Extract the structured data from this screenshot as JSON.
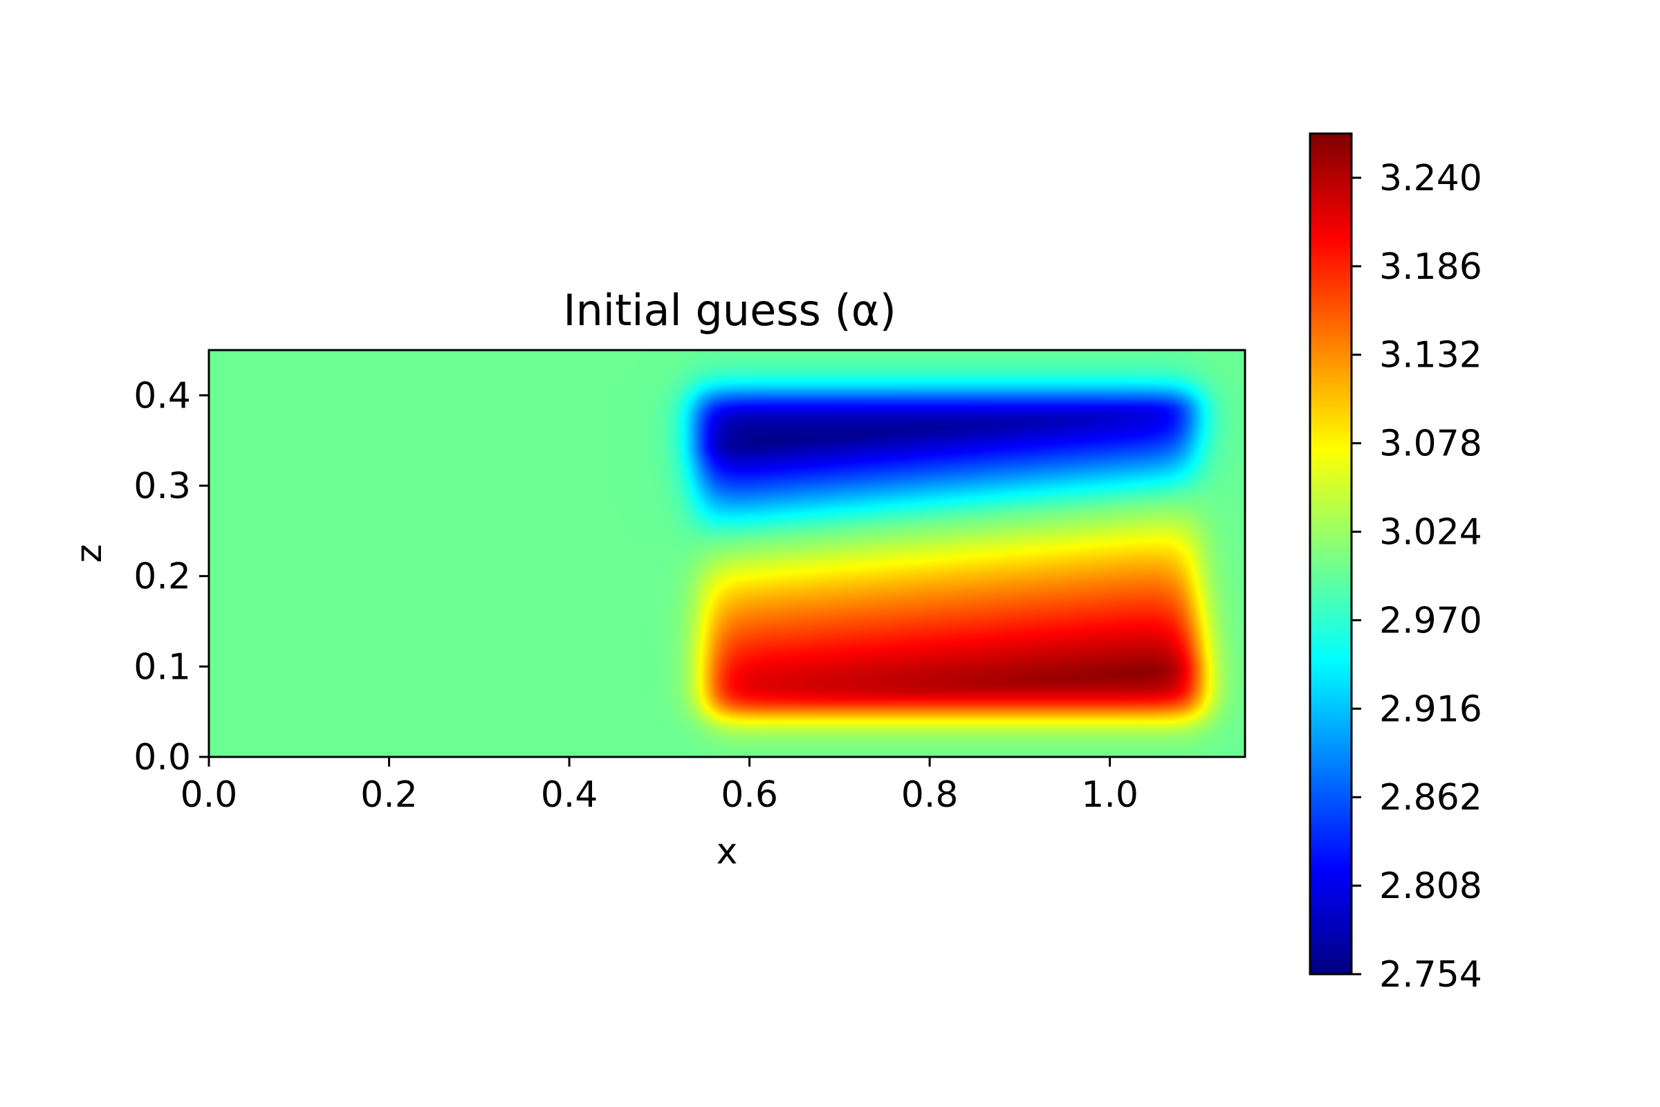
{
  "chart_data": {
    "type": "heatmap",
    "title": "Initial guess (α)",
    "xlabel": "x",
    "ylabel": "z",
    "xlim": [
      0.0,
      1.15
    ],
    "ylim": [
      0.0,
      0.45
    ],
    "x_ticks": [
      "0.0",
      "0.2",
      "0.4",
      "0.6",
      "0.8",
      "1.0"
    ],
    "x_tick_values": [
      0.0,
      0.2,
      0.4,
      0.6,
      0.8,
      1.0
    ],
    "y_ticks": [
      "0.0",
      "0.1",
      "0.2",
      "0.3",
      "0.4"
    ],
    "y_tick_values": [
      0.0,
      0.1,
      0.2,
      0.3,
      0.4
    ],
    "colormap": "jet",
    "colorbar": {
      "min": 2.754,
      "max": 3.267,
      "ticks": [
        "2.754",
        "2.808",
        "2.862",
        "2.916",
        "2.970",
        "3.024",
        "3.078",
        "3.132",
        "3.186",
        "3.240"
      ],
      "tick_values": [
        2.754,
        2.808,
        2.862,
        2.916,
        2.97,
        3.024,
        3.078,
        3.132,
        3.186,
        3.24
      ]
    },
    "field": {
      "background_value": 3.0,
      "anomaly_region": {
        "x": [
          0.55,
          1.1
        ],
        "z": [
          0.05,
          0.4
        ]
      },
      "min_value": 2.754,
      "max_value": 3.267
    },
    "grid": false
  }
}
